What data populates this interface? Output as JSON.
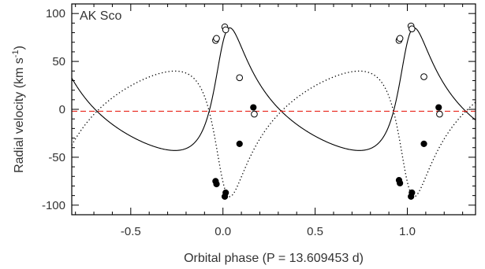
{
  "chart_data": {
    "type": "scatter",
    "title": "",
    "annotation": "AK Sco",
    "xlabel": "Orbital phase (P = 13.609453 d)",
    "ylabel_main": "Radial velocity (km s",
    "ylabel_sup": "-1",
    "ylabel_close": ")",
    "xlim": [
      -0.82,
      1.37
    ],
    "ylim": [
      -110,
      110
    ],
    "xticks": [
      -0.5,
      0.0,
      0.5,
      1.0
    ],
    "xtick_labels": [
      "-0.5",
      "0.0",
      "0.5",
      "1.0"
    ],
    "yticks": [
      -100,
      -50,
      0,
      50,
      100
    ],
    "ytick_labels": [
      "-100",
      "-50",
      "0",
      "50",
      "100"
    ],
    "grid": false,
    "orbit": {
      "systemic_velocity": -2,
      "eccentricity": 0.47,
      "omega_deg": 320,
      "periastron_phase": 0.0
    },
    "model_curves": [
      {
        "component": "primary",
        "semi_amplitude": 64,
        "style": "solid",
        "color": "#000000"
      },
      {
        "component": "secondary",
        "semi_amplitude": 65.5,
        "style": "dotted",
        "color": "#000000"
      }
    ],
    "reference_line": {
      "y": -2,
      "style": "dashed",
      "color": "#e8251c"
    },
    "series": [
      {
        "marker": "filled-circle",
        "points": [
          {
            "x": -0.04,
            "y": -75
          },
          {
            "x": -0.035,
            "y": -78
          },
          {
            "x": 0.01,
            "y": -91
          },
          {
            "x": 0.015,
            "y": -87
          },
          {
            "x": 0.09,
            "y": -36
          },
          {
            "x": 0.165,
            "y": 2
          },
          {
            "x": 0.955,
            "y": -74
          },
          {
            "x": 0.96,
            "y": -77
          },
          {
            "x": 1.02,
            "y": -91
          },
          {
            "x": 1.025,
            "y": -87
          },
          {
            "x": 1.09,
            "y": -36
          },
          {
            "x": 1.17,
            "y": 2
          }
        ]
      },
      {
        "marker": "open-circle",
        "points": [
          {
            "x": -0.04,
            "y": 72
          },
          {
            "x": -0.035,
            "y": 74
          },
          {
            "x": 0.01,
            "y": 86
          },
          {
            "x": 0.015,
            "y": 83
          },
          {
            "x": 0.09,
            "y": 33
          },
          {
            "x": 0.17,
            "y": -5
          },
          {
            "x": 0.955,
            "y": 72
          },
          {
            "x": 0.96,
            "y": 74
          },
          {
            "x": 1.02,
            "y": 87
          },
          {
            "x": 1.025,
            "y": 84
          },
          {
            "x": 1.09,
            "y": 34
          },
          {
            "x": 1.175,
            "y": -5
          }
        ]
      }
    ]
  }
}
